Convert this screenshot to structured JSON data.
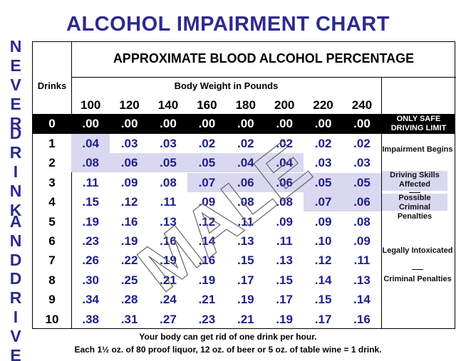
{
  "title": "ALCOHOL IMPAIRMENT CHART",
  "side_text": [
    "NEVER",
    "DRINK",
    "AND",
    "DRIVE"
  ],
  "table": {
    "caption": "APPROXIMATE BLOOD ALCOHOL PERCENTAGE",
    "drinks_header": "Drinks",
    "weight_header": "Body Weight in Pounds",
    "weights": [
      100,
      120,
      140,
      160,
      180,
      200,
      220,
      240
    ],
    "rows": [
      {
        "drinks": 0,
        "values": [
          ".00",
          ".00",
          ".00",
          ".00",
          ".00",
          ".00",
          ".00",
          ".00"
        ]
      },
      {
        "drinks": 1,
        "values": [
          ".04",
          ".03",
          ".03",
          ".02",
          ".02",
          ".02",
          ".02",
          ".02"
        ]
      },
      {
        "drinks": 2,
        "values": [
          ".08",
          ".06",
          ".05",
          ".05",
          ".04",
          ".04",
          ".03",
          ".03"
        ]
      },
      {
        "drinks": 3,
        "values": [
          ".11",
          ".09",
          ".08",
          ".07",
          ".06",
          ".06",
          ".05",
          ".05"
        ]
      },
      {
        "drinks": 4,
        "values": [
          ".15",
          ".12",
          ".11",
          ".09",
          ".08",
          ".08",
          ".07",
          ".06"
        ]
      },
      {
        "drinks": 5,
        "values": [
          ".19",
          ".16",
          ".13",
          ".12",
          ".11",
          ".09",
          ".09",
          ".08"
        ]
      },
      {
        "drinks": 6,
        "values": [
          ".23",
          ".19",
          ".16",
          ".14",
          ".13",
          ".11",
          ".10",
          ".09"
        ]
      },
      {
        "drinks": 7,
        "values": [
          ".26",
          ".22",
          ".19",
          ".16",
          ".15",
          ".13",
          ".12",
          ".11"
        ]
      },
      {
        "drinks": 8,
        "values": [
          ".30",
          ".25",
          ".21",
          ".19",
          ".17",
          ".15",
          ".14",
          ".13"
        ]
      },
      {
        "drinks": 9,
        "values": [
          ".34",
          ".28",
          ".24",
          ".21",
          ".19",
          ".17",
          ".15",
          ".14"
        ]
      },
      {
        "drinks": 10,
        "values": [
          ".38",
          ".31",
          ".27",
          ".23",
          ".21",
          ".19",
          ".17",
          ".16"
        ]
      }
    ],
    "notes": {
      "safe": "ONLY SAFE DRIVING LIMIT",
      "impairment": "Impairment Begins",
      "skills": "Driving Skills Affected",
      "possible": "Possible Criminal Penalties",
      "intoxicated": "Legally Intoxicated",
      "penalties": "Criminal Penalties"
    }
  },
  "watermark": "MALE",
  "footer": [
    "Your body can get rid of one drink per hour.",
    "Each 1½ oz. of 80 proof liquor, 12 oz. of beer or 5 oz. of table wine = 1 drink."
  ]
}
